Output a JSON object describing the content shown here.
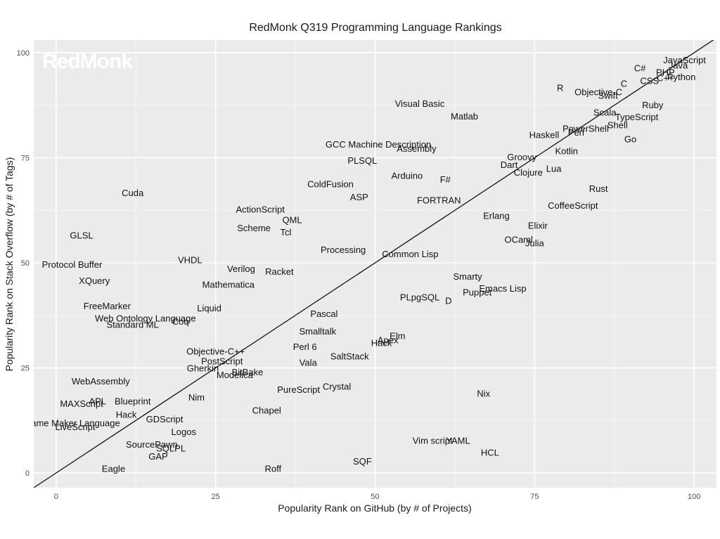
{
  "logo_text": "RedMonk",
  "chart_data": {
    "type": "scatter",
    "title": "RedMonk Q319 Programming Language Rankings",
    "xlabel": "Popularity Rank on GitHub (by # of Projects)",
    "ylabel": "Popularity Rank on Stack Overflow (by # of Tags)",
    "xlim": [
      -3.5,
      103.5
    ],
    "ylim": [
      -3.5,
      103
    ],
    "xticks": [
      0,
      25,
      50,
      75,
      100
    ],
    "yticks": [
      0,
      25,
      50,
      75,
      100
    ],
    "grid": true,
    "reference_line": "y = x",
    "points": [
      {
        "label": "JavaScript",
        "x": 98.5,
        "y": 98.2
      },
      {
        "label": "Java",
        "x": 97.5,
        "y": 97.0
      },
      {
        "label": "C#",
        "x": 91.5,
        "y": 96.3
      },
      {
        "label": "PHP",
        "x": 95.5,
        "y": 95.3
      },
      {
        "label": "C++",
        "x": 95.5,
        "y": 94.0
      },
      {
        "label": "Python",
        "x": 98.0,
        "y": 94.2
      },
      {
        "label": "CSS",
        "x": 93.0,
        "y": 93.3
      },
      {
        "label": "C",
        "x": 89.0,
        "y": 92.6
      },
      {
        "label": "R",
        "x": 79.0,
        "y": 91.6
      },
      {
        "label": "Objective-C",
        "x": 85.0,
        "y": 90.6
      },
      {
        "label": "Swift",
        "x": 86.5,
        "y": 89.8
      },
      {
        "label": "Ruby",
        "x": 93.5,
        "y": 87.5
      },
      {
        "label": "Scala",
        "x": 86.0,
        "y": 85.8
      },
      {
        "label": "TypeScript",
        "x": 91.0,
        "y": 84.7
      },
      {
        "label": "Shell",
        "x": 88.0,
        "y": 82.8
      },
      {
        "label": "PowerShell",
        "x": 83.0,
        "y": 81.9
      },
      {
        "label": "Perl",
        "x": 81.5,
        "y": 81.0
      },
      {
        "label": "Haskell",
        "x": 76.5,
        "y": 80.4
      },
      {
        "label": "Go",
        "x": 90.0,
        "y": 79.4
      },
      {
        "label": "Visual Basic",
        "x": 57.0,
        "y": 87.9
      },
      {
        "label": "Matlab",
        "x": 64.0,
        "y": 84.9
      },
      {
        "label": "GCC Machine Description",
        "x": 50.5,
        "y": 78.2
      },
      {
        "label": "Assembly",
        "x": 56.5,
        "y": 77.2
      },
      {
        "label": "PLSQL",
        "x": 48.0,
        "y": 74.3
      },
      {
        "label": "Kotlin",
        "x": 80.0,
        "y": 76.6
      },
      {
        "label": "Groovy",
        "x": 73.0,
        "y": 75.2
      },
      {
        "label": "Dart",
        "x": 71.0,
        "y": 73.3
      },
      {
        "label": "Lua",
        "x": 78.0,
        "y": 72.4
      },
      {
        "label": "Clojure",
        "x": 74.0,
        "y": 71.5
      },
      {
        "label": "Arduino",
        "x": 55.0,
        "y": 70.7
      },
      {
        "label": "F#",
        "x": 61.0,
        "y": 69.8
      },
      {
        "label": "ColdFusion",
        "x": 43.0,
        "y": 68.7
      },
      {
        "label": "ASP",
        "x": 47.5,
        "y": 65.6
      },
      {
        "label": "FORTRAN",
        "x": 60.0,
        "y": 64.9
      },
      {
        "label": "Rust",
        "x": 85.0,
        "y": 67.6
      },
      {
        "label": "CoffeeScript",
        "x": 81.0,
        "y": 63.6
      },
      {
        "label": "Cuda",
        "x": 12.0,
        "y": 66.6
      },
      {
        "label": "ActionScript",
        "x": 32.0,
        "y": 62.7
      },
      {
        "label": "QML",
        "x": 37.0,
        "y": 60.2
      },
      {
        "label": "Scheme",
        "x": 31.0,
        "y": 58.3
      },
      {
        "label": "Tcl",
        "x": 36.0,
        "y": 57.3
      },
      {
        "label": "Erlang",
        "x": 69.0,
        "y": 61.2
      },
      {
        "label": "Elixir",
        "x": 75.5,
        "y": 58.9
      },
      {
        "label": "GLSL",
        "x": 4.0,
        "y": 56.5
      },
      {
        "label": "OCaml",
        "x": 72.5,
        "y": 55.5
      },
      {
        "label": "Julia",
        "x": 75.0,
        "y": 54.7
      },
      {
        "label": "Processing",
        "x": 45.0,
        "y": 53.1
      },
      {
        "label": "Common Lisp",
        "x": 55.5,
        "y": 52.1
      },
      {
        "label": "VHDL",
        "x": 21.0,
        "y": 50.7
      },
      {
        "label": "Protocol Buffer",
        "x": 2.5,
        "y": 49.6
      },
      {
        "label": "Verilog",
        "x": 29.0,
        "y": 48.6
      },
      {
        "label": "Racket",
        "x": 35.0,
        "y": 47.9
      },
      {
        "label": "Smarty",
        "x": 64.5,
        "y": 46.7
      },
      {
        "label": "XQuery",
        "x": 6.0,
        "y": 45.7
      },
      {
        "label": "Mathematica",
        "x": 27.0,
        "y": 44.8
      },
      {
        "label": "Emacs Lisp",
        "x": 70.0,
        "y": 43.9
      },
      {
        "label": "Puppet",
        "x": 66.0,
        "y": 43.0
      },
      {
        "label": "PLpgSQL",
        "x": 57.0,
        "y": 41.8
      },
      {
        "label": "D",
        "x": 61.5,
        "y": 41.0
      },
      {
        "label": "FreeMarker",
        "x": 8.0,
        "y": 39.7
      },
      {
        "label": "Liquid",
        "x": 24.0,
        "y": 39.2
      },
      {
        "label": "Pascal",
        "x": 42.0,
        "y": 37.9
      },
      {
        "label": "Web Ontology Language",
        "x": 14.0,
        "y": 36.8
      },
      {
        "label": "Coq",
        "x": 19.5,
        "y": 36.0
      },
      {
        "label": "Standard ML",
        "x": 12.0,
        "y": 35.3
      },
      {
        "label": "Smalltalk",
        "x": 41.0,
        "y": 33.7
      },
      {
        "label": "Elm",
        "x": 53.5,
        "y": 32.6
      },
      {
        "label": "Apex",
        "x": 52.0,
        "y": 31.6
      },
      {
        "label": "Hack",
        "x": 51.0,
        "y": 30.9
      },
      {
        "label": "Perl 6",
        "x": 39.0,
        "y": 30.0
      },
      {
        "label": "Objective-C++",
        "x": 25.0,
        "y": 28.9
      },
      {
        "label": "SaltStack",
        "x": 46.0,
        "y": 27.8
      },
      {
        "label": "PostScript",
        "x": 26.0,
        "y": 26.6
      },
      {
        "label": "Vala",
        "x": 39.5,
        "y": 26.3
      },
      {
        "label": "Gherkin",
        "x": 23.0,
        "y": 24.9
      },
      {
        "label": "BitBake",
        "x": 30.0,
        "y": 24.0
      },
      {
        "label": "Modelica",
        "x": 28.0,
        "y": 23.3
      },
      {
        "label": "WebAssembly",
        "x": 7.0,
        "y": 21.8
      },
      {
        "label": "PureScript",
        "x": 38.0,
        "y": 19.8
      },
      {
        "label": "Crystal",
        "x": 44.0,
        "y": 20.6
      },
      {
        "label": "Nix",
        "x": 67.0,
        "y": 18.9
      },
      {
        "label": "Nim",
        "x": 22.0,
        "y": 18.0
      },
      {
        "label": "APL",
        "x": 6.5,
        "y": 17.1
      },
      {
        "label": "Blueprint",
        "x": 12.0,
        "y": 17.1
      },
      {
        "label": "MAXScript",
        "x": 4.0,
        "y": 16.5
      },
      {
        "label": "Chapel",
        "x": 33.0,
        "y": 14.9
      },
      {
        "label": "Hack",
        "x": 11.0,
        "y": 13.9
      },
      {
        "label": "GDScript",
        "x": 17.0,
        "y": 12.8
      },
      {
        "label": "Game Maker Language",
        "x": 2.5,
        "y": 11.9
      },
      {
        "label": "LiveScript",
        "x": 3.0,
        "y": 11.0
      },
      {
        "label": "Logos",
        "x": 20.0,
        "y": 9.8
      },
      {
        "label": "Vim script",
        "x": 59.0,
        "y": 7.7
      },
      {
        "label": "YAML",
        "x": 63.0,
        "y": 7.7
      },
      {
        "label": "SourcePawn",
        "x": 15.0,
        "y": 6.8
      },
      {
        "label": "SQLPL",
        "x": 18.0,
        "y": 5.9
      },
      {
        "label": "HCL",
        "x": 68.0,
        "y": 4.9
      },
      {
        "label": "GAP",
        "x": 16.0,
        "y": 3.9
      },
      {
        "label": "SQF",
        "x": 48.0,
        "y": 2.8
      },
      {
        "label": "Eagle",
        "x": 9.0,
        "y": 1.0
      },
      {
        "label": "Roff",
        "x": 34.0,
        "y": 1.0
      }
    ]
  }
}
